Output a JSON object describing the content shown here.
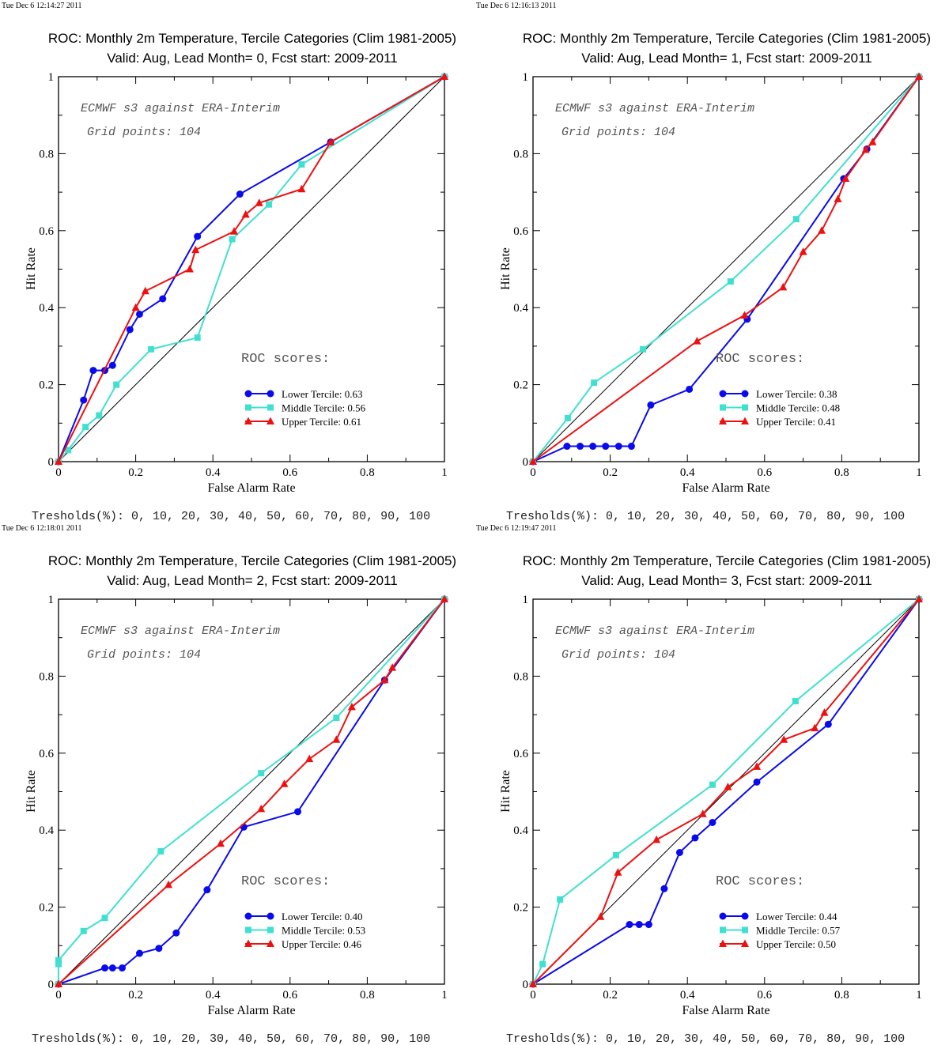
{
  "chart_data": [
    {
      "type": "line",
      "timestamp": "Tue Dec  6 12:14:27 2011",
      "title": "ROC: Monthly 2m Temperature, Tercile Categories (Clim 1981-2005)",
      "subtitle": "Valid: Aug, Lead Month= 0, Fcst start: 2009-2011",
      "xlabel": "False Alarm Rate",
      "ylabel": "Hit Rate",
      "xlim": [
        0,
        1
      ],
      "ylim": [
        0,
        1
      ],
      "xticks": [
        "0",
        "0.2",
        "0.4",
        "0.6",
        "0.8",
        "1"
      ],
      "yticks": [
        "0",
        "0.2",
        "0.4",
        "0.6",
        "0.8",
        "1"
      ],
      "annotation1": "ECMWF s3 against ERA-Interim",
      "annotation2": "Grid points:  104",
      "scores_title": "ROC scores:",
      "footer": "Tresholds(%): 0, 10, 20, 30, 40, 50, 60, 70, 80, 90, 100",
      "grid": false,
      "legend_position": "lower-right",
      "series": [
        {
          "name": "Lower Tercile: 0.63",
          "color": "#0a0aee",
          "marker": "circle",
          "points": [
            [
              0,
              0
            ],
            [
              0.065,
              0.16
            ],
            [
              0.09,
              0.237
            ],
            [
              0.12,
              0.237
            ],
            [
              0.14,
              0.25
            ],
            [
              0.185,
              0.343
            ],
            [
              0.21,
              0.383
            ],
            [
              0.27,
              0.423
            ],
            [
              0.36,
              0.585
            ],
            [
              0.47,
              0.695
            ],
            [
              0.705,
              0.83
            ],
            [
              1,
              1
            ]
          ]
        },
        {
          "name": "Middle Tercile: 0.56",
          "color": "#40e0d0",
          "marker": "square",
          "points": [
            [
              0,
              0
            ],
            [
              0.025,
              0.03
            ],
            [
              0.07,
              0.09
            ],
            [
              0.105,
              0.12
            ],
            [
              0.15,
              0.2
            ],
            [
              0.24,
              0.292
            ],
            [
              0.36,
              0.322
            ],
            [
              0.45,
              0.578
            ],
            [
              0.545,
              0.668
            ],
            [
              0.63,
              0.772
            ],
            [
              1,
              1
            ]
          ]
        },
        {
          "name": "Upper Tercile: 0.61",
          "color": "#ee1010",
          "marker": "triangle",
          "points": [
            [
              0,
              0
            ],
            [
              0.2,
              0.4
            ],
            [
              0.225,
              0.443
            ],
            [
              0.34,
              0.5
            ],
            [
              0.355,
              0.55
            ],
            [
              0.455,
              0.598
            ],
            [
              0.485,
              0.642
            ],
            [
              0.52,
              0.672
            ],
            [
              0.63,
              0.708
            ],
            [
              0.705,
              0.83
            ],
            [
              1,
              1
            ]
          ]
        }
      ]
    },
    {
      "type": "line",
      "timestamp": "Tue Dec  6 12:16:13 2011",
      "title": "ROC: Monthly 2m Temperature, Tercile Categories (Clim 1981-2005)",
      "subtitle": "Valid: Aug, Lead Month= 1, Fcst start: 2009-2011",
      "xlabel": "False Alarm Rate",
      "ylabel": "Hit Rate",
      "xlim": [
        0,
        1
      ],
      "ylim": [
        0,
        1
      ],
      "xticks": [
        "0",
        "0.2",
        "0.4",
        "0.6",
        "0.8",
        "1"
      ],
      "yticks": [
        "0",
        "0.2",
        "0.4",
        "0.6",
        "0.8",
        "1"
      ],
      "annotation1": "ECMWF s3 against ERA-Interim",
      "annotation2": "Grid points:  104",
      "scores_title": "ROC scores:",
      "footer": "Tresholds(%): 0, 10, 20, 30, 40, 50, 60, 70, 80, 90, 100",
      "grid": false,
      "legend_position": "lower-right",
      "series": [
        {
          "name": "Lower Tercile: 0.38",
          "color": "#0a0aee",
          "marker": "circle",
          "points": [
            [
              0,
              0
            ],
            [
              0.088,
              0.04
            ],
            [
              0.122,
              0.04
            ],
            [
              0.155,
              0.04
            ],
            [
              0.188,
              0.04
            ],
            [
              0.222,
              0.04
            ],
            [
              0.255,
              0.04
            ],
            [
              0.305,
              0.147
            ],
            [
              0.405,
              0.188
            ],
            [
              0.555,
              0.37
            ],
            [
              0.805,
              0.735
            ],
            [
              0.865,
              0.812
            ],
            [
              1,
              1
            ]
          ]
        },
        {
          "name": "Middle Tercile: 0.48",
          "color": "#40e0d0",
          "marker": "square",
          "points": [
            [
              0,
              0
            ],
            [
              0.09,
              0.113
            ],
            [
              0.158,
              0.205
            ],
            [
              0.285,
              0.292
            ],
            [
              0.512,
              0.468
            ],
            [
              0.682,
              0.63
            ],
            [
              1,
              1
            ]
          ]
        },
        {
          "name": "Upper Tercile: 0.41",
          "color": "#ee1010",
          "marker": "triangle",
          "points": [
            [
              0,
              0
            ],
            [
              0.425,
              0.313
            ],
            [
              0.548,
              0.38
            ],
            [
              0.648,
              0.453
            ],
            [
              0.7,
              0.545
            ],
            [
              0.748,
              0.6
            ],
            [
              0.79,
              0.682
            ],
            [
              0.81,
              0.735
            ],
            [
              0.862,
              0.81
            ],
            [
              0.88,
              0.83
            ],
            [
              1,
              1
            ]
          ]
        }
      ]
    },
    {
      "type": "line",
      "timestamp": "Tue Dec  6 12:18:01 2011",
      "title": "ROC: Monthly 2m Temperature, Tercile Categories (Clim 1981-2005)",
      "subtitle": "Valid: Aug, Lead Month= 2, Fcst start: 2009-2011",
      "xlabel": "False Alarm Rate",
      "ylabel": "Hit Rate",
      "xlim": [
        0,
        1
      ],
      "ylim": [
        0,
        1
      ],
      "xticks": [
        "0",
        "0.2",
        "0.4",
        "0.6",
        "0.8",
        "1"
      ],
      "yticks": [
        "0",
        "0.2",
        "0.4",
        "0.6",
        "0.8",
        "1"
      ],
      "annotation1": "ECMWF s3 against ERA-Interim",
      "annotation2": "Grid points:  104",
      "scores_title": "ROC scores:",
      "footer": "Tresholds(%): 0, 10, 20, 30, 40, 50, 60, 70, 80, 90, 100",
      "grid": false,
      "legend_position": "lower-right",
      "series": [
        {
          "name": "Lower Tercile: 0.40",
          "color": "#0a0aee",
          "marker": "circle",
          "points": [
            [
              0,
              0
            ],
            [
              0.12,
              0.042
            ],
            [
              0.14,
              0.042
            ],
            [
              0.165,
              0.042
            ],
            [
              0.21,
              0.08
            ],
            [
              0.26,
              0.093
            ],
            [
              0.305,
              0.133
            ],
            [
              0.385,
              0.245
            ],
            [
              0.48,
              0.408
            ],
            [
              0.62,
              0.448
            ],
            [
              0.845,
              0.79
            ],
            [
              1,
              1
            ]
          ]
        },
        {
          "name": "Middle Tercile: 0.53",
          "color": "#40e0d0",
          "marker": "square",
          "points": [
            [
              0,
              0
            ],
            [
              0,
              0.052
            ],
            [
              0,
              0.062
            ],
            [
              0.065,
              0.138
            ],
            [
              0.12,
              0.172
            ],
            [
              0.265,
              0.345
            ],
            [
              0.525,
              0.548
            ],
            [
              0.72,
              0.692
            ],
            [
              1,
              1
            ]
          ]
        },
        {
          "name": "Upper Tercile: 0.46",
          "color": "#ee1010",
          "marker": "triangle",
          "points": [
            [
              0,
              0
            ],
            [
              0.285,
              0.258
            ],
            [
              0.42,
              0.365
            ],
            [
              0.525,
              0.455
            ],
            [
              0.585,
              0.52
            ],
            [
              0.65,
              0.585
            ],
            [
              0.72,
              0.635
            ],
            [
              0.76,
              0.72
            ],
            [
              0.845,
              0.79
            ],
            [
              0.865,
              0.822
            ],
            [
              1,
              1
            ]
          ]
        }
      ]
    },
    {
      "type": "line",
      "timestamp": "Tue Dec  6 12:19:47 2011",
      "title": "ROC: Monthly 2m Temperature, Tercile Categories (Clim 1981-2005)",
      "subtitle": "Valid: Aug, Lead Month= 3, Fcst start: 2009-2011",
      "xlabel": "False Alarm Rate",
      "ylabel": "Hit Rate",
      "xlim": [
        0,
        1
      ],
      "ylim": [
        0,
        1
      ],
      "xticks": [
        "0",
        "0.2",
        "0.4",
        "0.6",
        "0.8",
        "1"
      ],
      "yticks": [
        "0",
        "0.2",
        "0.4",
        "0.6",
        "0.8",
        "1"
      ],
      "annotation1": "ECMWF s3 against ERA-Interim",
      "annotation2": "Grid points:  104",
      "scores_title": "ROC scores:",
      "footer": "Tresholds(%): 0, 10, 20, 30, 40, 50, 60, 70, 80, 90, 100",
      "grid": false,
      "legend_position": "lower-right",
      "series": [
        {
          "name": "Lower Tercile: 0.44",
          "color": "#0a0aee",
          "marker": "circle",
          "points": [
            [
              0,
              0
            ],
            [
              0.25,
              0.155
            ],
            [
              0.275,
              0.155
            ],
            [
              0.3,
              0.155
            ],
            [
              0.34,
              0.248
            ],
            [
              0.38,
              0.342
            ],
            [
              0.42,
              0.38
            ],
            [
              0.465,
              0.42
            ],
            [
              0.58,
              0.525
            ],
            [
              0.765,
              0.675
            ],
            [
              1,
              1
            ]
          ]
        },
        {
          "name": "Middle Tercile: 0.57",
          "color": "#40e0d0",
          "marker": "square",
          "points": [
            [
              0,
              0
            ],
            [
              0.025,
              0.052
            ],
            [
              0.07,
              0.22
            ],
            [
              0.215,
              0.335
            ],
            [
              0.465,
              0.518
            ],
            [
              0.68,
              0.735
            ],
            [
              1,
              1
            ]
          ]
        },
        {
          "name": "Upper Tercile: 0.50",
          "color": "#ee1010",
          "marker": "triangle",
          "points": [
            [
              0,
              0
            ],
            [
              0.175,
              0.175
            ],
            [
              0.22,
              0.29
            ],
            [
              0.32,
              0.375
            ],
            [
              0.44,
              0.442
            ],
            [
              0.505,
              0.512
            ],
            [
              0.58,
              0.565
            ],
            [
              0.65,
              0.635
            ],
            [
              0.73,
              0.665
            ],
            [
              0.755,
              0.705
            ],
            [
              1,
              1
            ]
          ]
        }
      ]
    }
  ]
}
